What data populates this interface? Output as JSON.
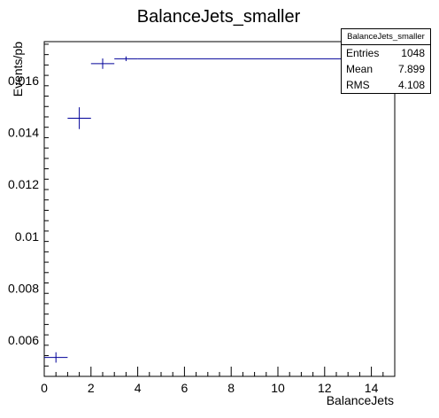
{
  "chart_data": {
    "type": "scatter",
    "title": "BalanceJets_smaller",
    "xlabel": "BalanceJets",
    "ylabel": "Events/pb",
    "xlim": [
      0,
      15
    ],
    "ylim": [
      0.0046,
      0.0175
    ],
    "x_ticks": [
      0,
      2,
      4,
      6,
      8,
      10,
      12,
      14
    ],
    "y_ticks": [
      0.006,
      0.008,
      0.01,
      0.012,
      0.014,
      0.016
    ],
    "y_tick_labels": [
      "0.006",
      "0.008",
      "0.01",
      "0.012",
      "0.014",
      "0.016"
    ],
    "grid": false,
    "points": [
      {
        "x": 0.5,
        "y": 0.00533,
        "x_lo": 0,
        "x_hi": 1,
        "y_err": 0.0002
      },
      {
        "x": 1.5,
        "y": 0.01455,
        "x_lo": 1,
        "x_hi": 2,
        "y_err": 0.00042
      },
      {
        "x": 2.5,
        "y": 0.01665,
        "x_lo": 2,
        "x_hi": 3,
        "y_err": 0.0002
      },
      {
        "x": 3.5,
        "y": 0.01684,
        "x_lo": 3,
        "x_hi": 4,
        "y_err": 9e-05
      },
      {
        "x": 9.5,
        "y": 0.01684,
        "x_lo": 4,
        "x_hi": 15,
        "y_err": 0.0
      }
    ],
    "colors": {
      "markers": "#000099",
      "axes": "#000000"
    },
    "stats": {
      "title": "BalanceJets_smaller",
      "entries_label": "Entries",
      "entries_value": "1048",
      "mean_label": "Mean",
      "mean_value": "7.899",
      "rms_label": "RMS",
      "rms_value": "4.108"
    }
  }
}
